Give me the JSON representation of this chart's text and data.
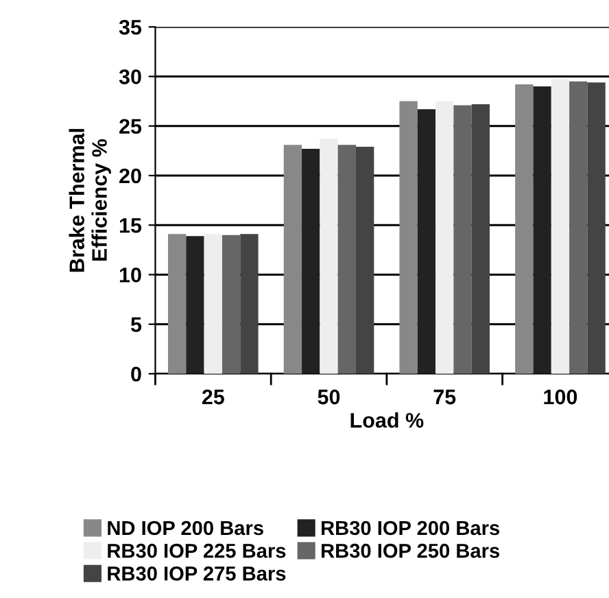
{
  "chart_data": {
    "type": "bar",
    "xlabel": "Load %",
    "ylabel": "Brake Thermal\nEfficiency %",
    "categories": [
      "25",
      "50",
      "75",
      "100"
    ],
    "series": [
      {
        "name": "ND IOP 200 Bars",
        "color": "#888888",
        "values": [
          14.1,
          23.1,
          27.5,
          29.2
        ]
      },
      {
        "name": "RB30 IOP 200 Bars",
        "color": "#222222",
        "values": [
          13.9,
          22.7,
          26.7,
          29.0
        ]
      },
      {
        "name": "RB30 IOP 225 Bars",
        "color": "#eeeeee",
        "values": [
          14.1,
          23.7,
          27.5,
          29.7
        ]
      },
      {
        "name": "RB30 IOP 250 Bars",
        "color": "#666666",
        "values": [
          14.0,
          23.1,
          27.1,
          29.5
        ]
      },
      {
        "name": "RB30 IOP 275 Bars",
        "color": "#444444",
        "values": [
          14.1,
          22.9,
          27.2,
          29.4
        ]
      }
    ],
    "ylim": [
      0,
      35
    ],
    "yticks": [
      0,
      5,
      10,
      15,
      20,
      25,
      30,
      35
    ],
    "grid": "y",
    "legend": "bottom"
  }
}
